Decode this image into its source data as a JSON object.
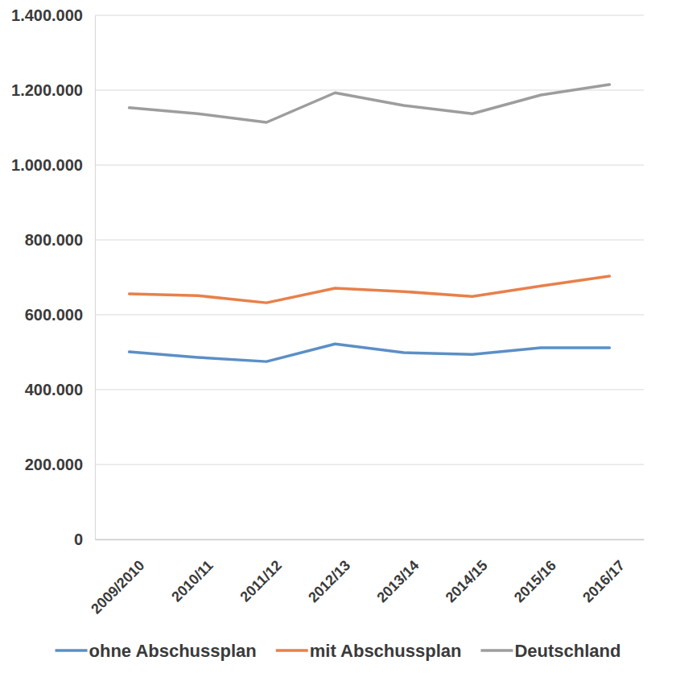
{
  "chart_data": {
    "type": "line",
    "categories": [
      "2009/2010",
      "2010/11",
      "2011/12",
      "2012/13",
      "2013/14",
      "2014/15",
      "2015/16",
      "2016/17"
    ],
    "series": [
      {
        "name": "ohne Abschussplan",
        "color": "#5b8fc6",
        "values": [
          501000,
          486000,
          475000,
          522000,
          499000,
          494000,
          512000,
          512000
        ]
      },
      {
        "name": "mit Abschussplan",
        "color": "#e8804a",
        "values": [
          656000,
          651000,
          632000,
          671000,
          662000,
          649000,
          677000,
          703000
        ]
      },
      {
        "name": "Deutschland",
        "color": "#9d9d9d",
        "values": [
          1153000,
          1137000,
          1114000,
          1193000,
          1159000,
          1137000,
          1187000,
          1215000
        ]
      }
    ],
    "ylim": [
      0,
      1400000
    ],
    "yticks": [
      0,
      {
        "value": 200000,
        "label": "200.000"
      },
      {
        "value": 400000,
        "label": "400.000"
      },
      {
        "value": 600000,
        "label": "600.000"
      },
      {
        "value": 800000,
        "label": "800.000"
      },
      {
        "value": 1000000,
        "label": "1.000.000"
      },
      {
        "value": 1200000,
        "label": "1.200.000"
      },
      {
        "value": 1400000,
        "label": "1.400.000"
      }
    ],
    "grid": true,
    "legend": "bottom"
  }
}
